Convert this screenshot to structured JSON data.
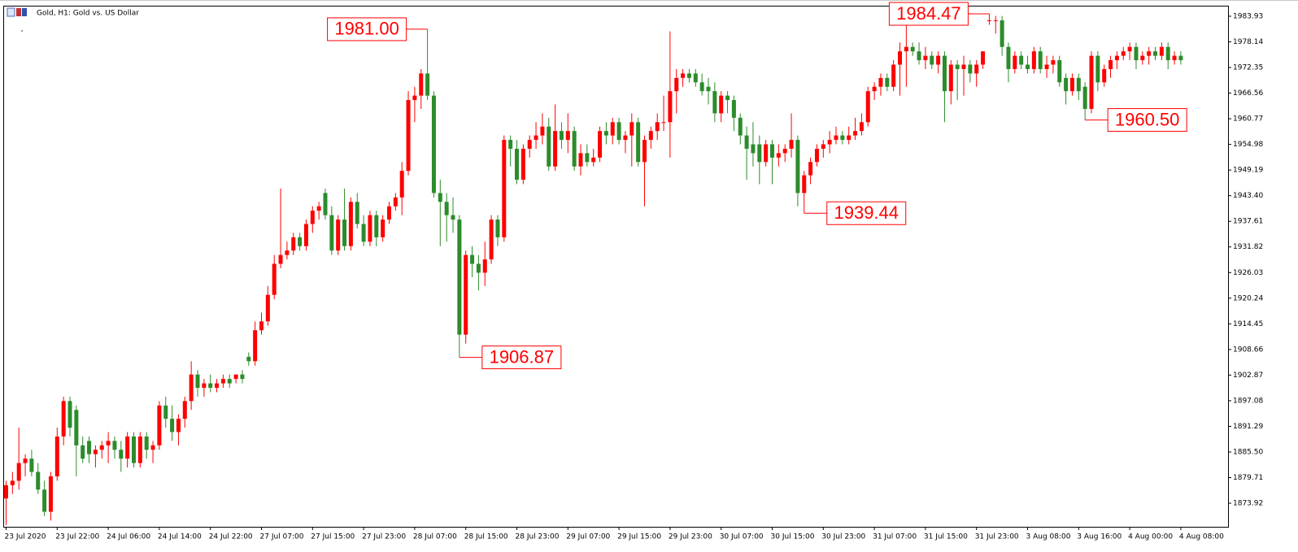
{
  "chart_data": {
    "type": "candlestick",
    "title": "Gold, H1:  Gold vs. US Dollar",
    "up_color": "#ff0000",
    "down_color": "#2b8c2b",
    "ylim": [
      1868.6,
      1986.13
    ],
    "yticks": [
      1983.93,
      1978.14,
      1972.35,
      1966.56,
      1960.77,
      1954.98,
      1949.19,
      {
        "value": 1943.4,
        "label": "1943.40"
      },
      1937.61,
      1931.82,
      1926.03,
      1920.24,
      1914.45,
      1908.66,
      1902.87,
      1897.08,
      1891.29,
      {
        "value": 1885.5,
        "label": "1885.50"
      },
      1879.71,
      1873.92
    ],
    "categories": [
      "23 Jul 2020",
      null,
      null,
      null,
      null,
      null,
      null,
      null,
      "23 Jul 22:00",
      null,
      null,
      null,
      null,
      null,
      null,
      null,
      "24 Jul 06:00",
      null,
      null,
      null,
      null,
      null,
      null,
      null,
      "24 Jul 14:00",
      null,
      null,
      null,
      null,
      null,
      null,
      null,
      "24 Jul 22:00",
      null,
      null,
      null,
      null,
      null,
      null,
      null,
      "27 Jul 07:00",
      null,
      null,
      null,
      null,
      null,
      null,
      null,
      "27 Jul 15:00",
      null,
      null,
      null,
      null,
      null,
      null,
      null,
      "27 Jul 23:00",
      null,
      null,
      null,
      null,
      null,
      null,
      null,
      "28 Jul 07:00",
      null,
      null,
      null,
      null,
      null,
      null,
      null,
      "28 Jul 15:00",
      null,
      null,
      null,
      null,
      null,
      null,
      null,
      "28 Jul 23:00",
      null,
      null,
      null,
      null,
      null,
      null,
      null,
      "29 Jul 07:00",
      null,
      null,
      null,
      null,
      null,
      null,
      null,
      "29 Jul 15:00",
      null,
      null,
      null,
      null,
      null,
      null,
      null,
      "29 Jul 23:00",
      null,
      null,
      null,
      null,
      null,
      null,
      null,
      "30 Jul 07:00",
      null,
      null,
      null,
      null,
      null,
      null,
      null,
      "30 Jul 15:00",
      null,
      null,
      null,
      null,
      null,
      null,
      null,
      "30 Jul 23:00",
      null,
      null,
      null,
      null,
      null,
      null,
      null,
      "31 Jul 07:00",
      null,
      null,
      null,
      null,
      null,
      null,
      null,
      "31 Jul 15:00",
      null,
      null,
      null,
      null,
      null,
      null,
      null,
      "31 Jul 23:00",
      null,
      null,
      null,
      null,
      null,
      null,
      null,
      "3 Aug 08:00",
      null,
      null,
      null,
      null,
      null,
      null,
      null,
      "3 Aug 16:00",
      null,
      null,
      null,
      null,
      null,
      null,
      null,
      "4 Aug 00:00",
      null,
      null,
      null,
      null,
      null,
      null,
      null,
      "4 Aug 08:00"
    ],
    "candles": [
      [
        1875,
        1879,
        1869,
        1878
      ],
      [
        1878,
        1881,
        1876,
        1879
      ],
      [
        1879,
        1891,
        1877,
        1883
      ],
      [
        1883,
        1885,
        1880,
        1884
      ],
      [
        1884,
        1886,
        1880,
        1881
      ],
      [
        1881,
        1883,
        1876,
        1877
      ],
      [
        1877,
        1879,
        1871,
        1872
      ],
      [
        1872,
        1881,
        1870,
        1880
      ],
      [
        1880,
        1891,
        1879,
        1889
      ],
      [
        1889,
        1898,
        1887,
        1897
      ],
      [
        1897,
        1898,
        1889,
        1891
      ],
      [
        1895,
        1896,
        1880,
        1887
      ],
      [
        1887,
        1889,
        1883,
        1884
      ],
      [
        1888,
        1889,
        1883,
        1885
      ],
      [
        1885,
        1887,
        1882,
        1886
      ],
      [
        1886,
        1888,
        1884,
        1887
      ],
      [
        1887,
        1890,
        1883,
        1888
      ],
      [
        1888,
        1889,
        1884,
        1886
      ],
      [
        1886,
        1888,
        1881,
        1884
      ],
      [
        1884,
        1890,
        1882,
        1889
      ],
      [
        1889,
        1890,
        1882,
        1883
      ],
      [
        1883,
        1890,
        1882,
        1889
      ],
      [
        1889,
        1890,
        1884,
        1886
      ],
      [
        1886,
        1888,
        1883,
        1887
      ],
      [
        1887,
        1897,
        1886,
        1896
      ],
      [
        1896,
        1898,
        1891,
        1893
      ],
      [
        1893,
        1896,
        1888,
        1890
      ],
      [
        1890,
        1894,
        1887,
        1893
      ],
      [
        1893,
        1898,
        1891,
        1897
      ],
      [
        1897,
        1906,
        1895,
        1903
      ],
      [
        1903,
        1904,
        1898,
        1900
      ],
      [
        1900,
        1902,
        1898,
        1901
      ],
      [
        1901,
        1903,
        1899,
        1900
      ],
      [
        1900,
        1902,
        1899,
        1901
      ],
      [
        1901,
        1903,
        1900,
        1902
      ],
      [
        1902,
        1903,
        1900,
        1901
      ],
      [
        1902,
        1903,
        1901,
        1903
      ],
      [
        1903,
        1904,
        1901,
        1902
      ],
      [
        1907,
        1908,
        1905,
        1906
      ],
      [
        1906,
        1915,
        1905,
        1913
      ],
      [
        1913,
        1917,
        1912,
        1915
      ],
      [
        1915,
        1923,
        1914,
        1921
      ],
      [
        1921,
        1930,
        1920,
        1928
      ],
      [
        1928,
        1945,
        1927,
        1930
      ],
      [
        1930,
        1933,
        1929,
        1931
      ],
      [
        1931,
        1935,
        1930,
        1934
      ],
      [
        1934,
        1935,
        1931,
        1932
      ],
      [
        1932,
        1938,
        1931,
        1937
      ],
      [
        1937,
        1941,
        1935,
        1940
      ],
      [
        1940,
        1942,
        1938,
        1941
      ],
      [
        1944,
        1945,
        1938,
        1939
      ],
      [
        1939,
        1941,
        1930,
        1931
      ],
      [
        1931,
        1939,
        1930,
        1938
      ],
      [
        1938,
        1945,
        1931,
        1932
      ],
      [
        1932,
        1943,
        1931,
        1942
      ],
      [
        1942,
        1944,
        1936,
        1937
      ],
      [
        1937,
        1939,
        1932,
        1933
      ],
      [
        1933,
        1940,
        1932,
        1939
      ],
      [
        1939,
        1940,
        1932,
        1934
      ],
      [
        1934,
        1939,
        1933,
        1938
      ],
      [
        1938,
        1942,
        1937,
        1941
      ],
      [
        1941,
        1944,
        1940,
        1943
      ],
      [
        1943,
        1951,
        1939,
        1949
      ],
      [
        1949,
        1967,
        1948,
        1965
      ],
      [
        1965,
        1968,
        1960,
        1966
      ],
      [
        1966,
        1972,
        1963,
        1971
      ],
      [
        1971,
        1981,
        1965,
        1966
      ],
      [
        1966,
        1967,
        1943,
        1944
      ],
      [
        1944,
        1947,
        1932,
        1942
      ],
      [
        1942,
        1944,
        1933,
        1939
      ],
      [
        1939,
        1943,
        1935,
        1938
      ],
      [
        1938,
        1939,
        1906.87,
        1912
      ],
      [
        1912,
        1931,
        1910,
        1930
      ],
      [
        1930,
        1932,
        1925,
        1928
      ],
      [
        1928,
        1930,
        1922,
        1926
      ],
      [
        1926,
        1933,
        1923,
        1929
      ],
      [
        1929,
        1939,
        1928,
        1938
      ],
      [
        1938,
        1939,
        1932,
        1934
      ],
      [
        1934,
        1957,
        1933,
        1956
      ],
      [
        1956,
        1957,
        1950,
        1954
      ],
      [
        1954,
        1956,
        1946,
        1947
      ],
      [
        1947,
        1955,
        1946,
        1954
      ],
      [
        1954,
        1957,
        1952,
        1956
      ],
      [
        1956,
        1960,
        1954,
        1957
      ],
      [
        1957,
        1962,
        1955,
        1959
      ],
      [
        1959,
        1961,
        1949,
        1950
      ],
      [
        1950,
        1964,
        1949,
        1958
      ],
      [
        1958,
        1960,
        1954,
        1956
      ],
      [
        1956,
        1962,
        1953,
        1958
      ],
      [
        1958,
        1959,
        1949,
        1950
      ],
      [
        1950,
        1955,
        1948,
        1953
      ],
      [
        1953,
        1955,
        1950,
        1951
      ],
      [
        1951,
        1954,
        1950,
        1952
      ],
      [
        1952,
        1959,
        1951,
        1958
      ],
      [
        1958,
        1960,
        1955,
        1957
      ],
      [
        1957,
        1961,
        1955,
        1960
      ],
      [
        1960,
        1961,
        1955,
        1956
      ],
      [
        1956,
        1958,
        1953,
        1957
      ],
      [
        1957,
        1962,
        1950,
        1960
      ],
      [
        1960,
        1961,
        1950,
        1951
      ],
      [
        1951,
        1957,
        1941,
        1956
      ],
      [
        1956,
        1959,
        1954,
        1958
      ],
      [
        1958,
        1962,
        1956,
        1960
      ],
      [
        1960,
        1966,
        1958,
        1960
      ],
      [
        1960,
        1980.5,
        1952,
        1967
      ],
      [
        1967,
        1972,
        1962,
        1970
      ],
      [
        1970,
        1972,
        1968,
        1971
      ],
      [
        1971,
        1972,
        1969,
        1970
      ],
      [
        1971,
        1972,
        1968,
        1969
      ],
      [
        1969,
        1971,
        1966,
        1967
      ],
      [
        1968,
        1970,
        1964,
        1967
      ],
      [
        1967,
        1969,
        1960,
        1962
      ],
      [
        1962,
        1967,
        1960,
        1966
      ],
      [
        1966,
        1967,
        1962,
        1965
      ],
      [
        1965,
        1966,
        1958,
        1961
      ],
      [
        1961,
        1962,
        1955,
        1957
      ],
      [
        1957,
        1959,
        1947,
        1954
      ],
      [
        1955,
        1960,
        1950,
        1953
      ],
      [
        1955,
        1957,
        1946,
        1951
      ],
      [
        1951,
        1956,
        1950,
        1955
      ],
      [
        1955,
        1956,
        1946,
        1952
      ],
      [
        1952,
        1955,
        1950,
        1953
      ],
      [
        1953,
        1955,
        1951,
        1954
      ],
      [
        1954,
        1962,
        1952,
        1956
      ],
      [
        1956,
        1957,
        1941,
        1944
      ],
      [
        1944,
        1949,
        1939.44,
        1948
      ],
      [
        1948,
        1952,
        1946,
        1951
      ],
      [
        1951,
        1955,
        1950,
        1954
      ],
      [
        1954,
        1956,
        1952,
        1955
      ],
      [
        1955,
        1958,
        1953,
        1956
      ],
      [
        1956,
        1959,
        1955,
        1957
      ],
      [
        1957,
        1958,
        1955,
        1956
      ],
      [
        1956,
        1959,
        1955,
        1957
      ],
      [
        1957,
        1961,
        1956,
        1958
      ],
      [
        1958,
        1962,
        1957,
        1960
      ],
      [
        1960,
        1968,
        1959,
        1967
      ],
      [
        1967,
        1969,
        1965,
        1968
      ],
      [
        1968,
        1971,
        1966,
        1970
      ],
      [
        1970,
        1971,
        1967,
        1968
      ],
      [
        1968,
        1974,
        1967,
        1973
      ],
      [
        1973,
        1978,
        1966,
        1976
      ],
      [
        1976,
        1983,
        1968,
        1977
      ],
      [
        1977,
        1978,
        1975,
        1976
      ],
      [
        1976,
        1978,
        1973,
        1974
      ],
      [
        1974,
        1977,
        1972,
        1975
      ],
      [
        1975,
        1976,
        1972,
        1973
      ],
      [
        1973,
        1976,
        1971,
        1975
      ],
      [
        1975,
        1976,
        1960,
        1967
      ],
      [
        1967,
        1974,
        1964,
        1973
      ],
      [
        1973,
        1974,
        1965,
        1972
      ],
      [
        1972,
        1975,
        1966,
        1973
      ],
      [
        1973,
        1974,
        1969,
        1971
      ],
      [
        1971,
        1974,
        1968,
        1973
      ],
      [
        1973,
        1976,
        1972,
        1976
      ],
      [
        1983,
        1984.47,
        1982,
        1983
      ],
      [
        1983,
        1984,
        1980,
        1983
      ],
      [
        1983,
        1984,
        1975,
        1977
      ],
      [
        1977,
        1978,
        1969,
        1972
      ],
      [
        1972,
        1976,
        1971,
        1975
      ],
      [
        1975,
        1976,
        1972,
        1973
      ],
      [
        1973,
        1975,
        1971,
        1972
      ],
      [
        1972,
        1977,
        1971,
        1976
      ],
      [
        1976,
        1977,
        1971,
        1972
      ],
      [
        1972,
        1975,
        1970,
        1973
      ],
      [
        1973,
        1975,
        1971,
        1974
      ],
      [
        1974,
        1975,
        1968,
        1969
      ],
      [
        1970,
        1971,
        1964,
        1967
      ],
      [
        1967,
        1971,
        1966,
        1970
      ],
      [
        1970,
        1971,
        1965,
        1967
      ],
      [
        1968,
        1969,
        1960.5,
        1963
      ],
      [
        1963,
        1976,
        1962,
        1975
      ],
      [
        1975,
        1976,
        1967,
        1969
      ],
      [
        1969,
        1973,
        1968,
        1972
      ],
      [
        1972,
        1975,
        1970,
        1974
      ],
      [
        1974,
        1976,
        1972,
        1975
      ],
      [
        1975,
        1977,
        1974,
        1976
      ],
      [
        1976,
        1978,
        1974,
        1977
      ],
      [
        1977,
        1978,
        1972,
        1974
      ],
      [
        1974,
        1976,
        1973,
        1975
      ],
      [
        1975,
        1977,
        1973,
        1976
      ],
      [
        1976,
        1977,
        1974,
        1975
      ],
      [
        1975,
        1978,
        1974,
        1977
      ],
      [
        1977,
        1978,
        1972,
        1974
      ],
      [
        1974,
        1976,
        1973,
        1975
      ],
      [
        1975,
        1976,
        1973,
        1974
      ]
    ],
    "annotations": [
      {
        "value": 1981,
        "label": "1981.00",
        "kind": "high"
      },
      {
        "value": 1906.87,
        "label": "1906.87",
        "kind": "low"
      },
      {
        "value": 1939.44,
        "label": "1939.44",
        "kind": "low"
      },
      {
        "value": 1984.47,
        "label": "1984.47",
        "kind": "high"
      },
      {
        "value": 1960.5,
        "label": "1960.50",
        "kind": "low"
      }
    ]
  }
}
